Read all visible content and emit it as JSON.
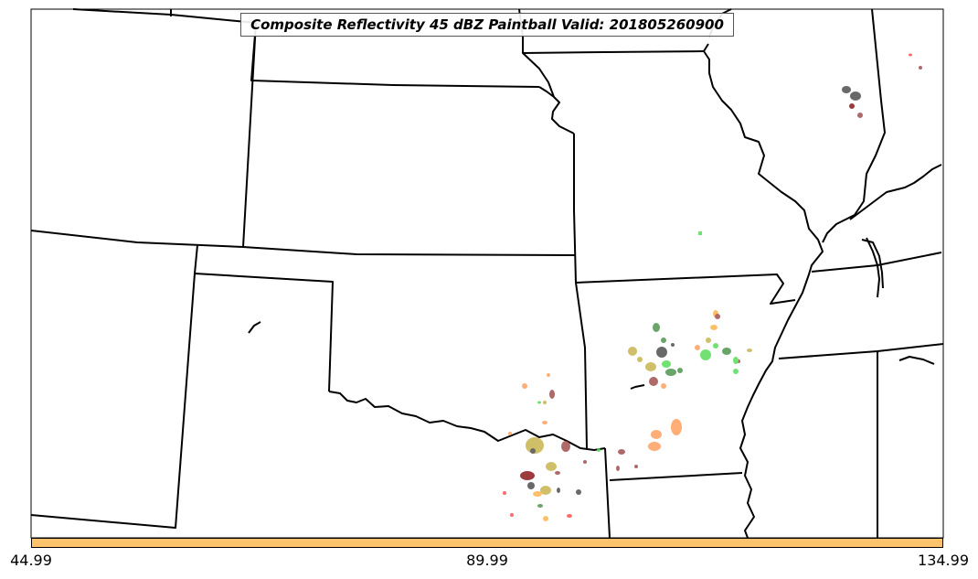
{
  "map": {
    "title": "Composite Reflectivity 45 dBZ Paintball Valid: 201805260900",
    "region": "Southern and Central Plains / Mid-Mississippi Valley",
    "colorbar_color": "#ffc36b",
    "boundary_color": "#000000",
    "background_color": "#ffffff",
    "colorbar_ticks": [
      "44.99",
      "89.99",
      "134.99"
    ],
    "paintball_colors": [
      "#ffa060",
      "#ff5050",
      "#c8b450",
      "#5adc5a",
      "#509650",
      "#a05050",
      "#505050",
      "#8b1a1a",
      "#ffb450"
    ]
  }
}
